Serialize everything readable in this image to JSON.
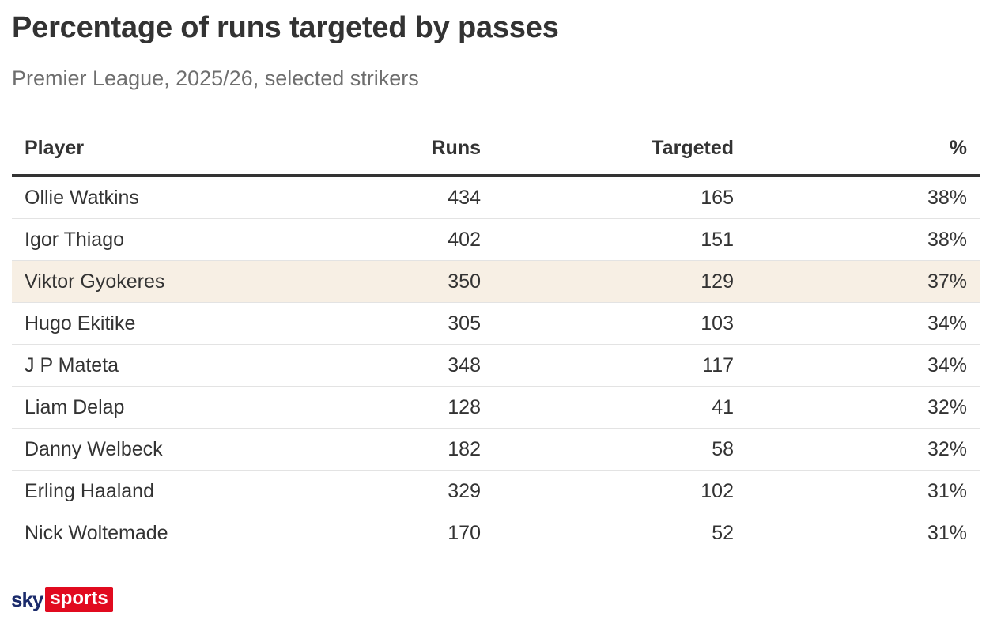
{
  "chart_data": {
    "type": "table",
    "title": "Percentage of runs targeted by passes",
    "subtitle": "Premier League, 2025/26, selected strikers",
    "columns": [
      "Player",
      "Runs",
      "Targeted",
      "%"
    ],
    "rows": [
      {
        "player": "Ollie Watkins",
        "runs": "434",
        "targeted": "165",
        "pct": "38%",
        "highlight": false
      },
      {
        "player": "Igor Thiago",
        "runs": "402",
        "targeted": "151",
        "pct": "38%",
        "highlight": false
      },
      {
        "player": "Viktor Gyokeres",
        "runs": "350",
        "targeted": "129",
        "pct": "37%",
        "highlight": true
      },
      {
        "player": "Hugo Ekitike",
        "runs": "305",
        "targeted": "103",
        "pct": "34%",
        "highlight": false
      },
      {
        "player": "J P Mateta",
        "runs": "348",
        "targeted": "117",
        "pct": "34%",
        "highlight": false
      },
      {
        "player": "Liam Delap",
        "runs": "128",
        "targeted": "41",
        "pct": "32%",
        "highlight": false
      },
      {
        "player": "Danny Welbeck",
        "runs": "182",
        "targeted": "58",
        "pct": "32%",
        "highlight": false
      },
      {
        "player": "Erling Haaland",
        "runs": "329",
        "targeted": "102",
        "pct": "31%",
        "highlight": false
      },
      {
        "player": "Nick Woltemade",
        "runs": "170",
        "targeted": "52",
        "pct": "31%",
        "highlight": false
      }
    ],
    "highlight_color": "#f7efe4"
  },
  "logo": {
    "sky": "sky",
    "sports": "sports",
    "sky_color": "#1b2b6b",
    "sports_bg": "#e10a1f"
  }
}
